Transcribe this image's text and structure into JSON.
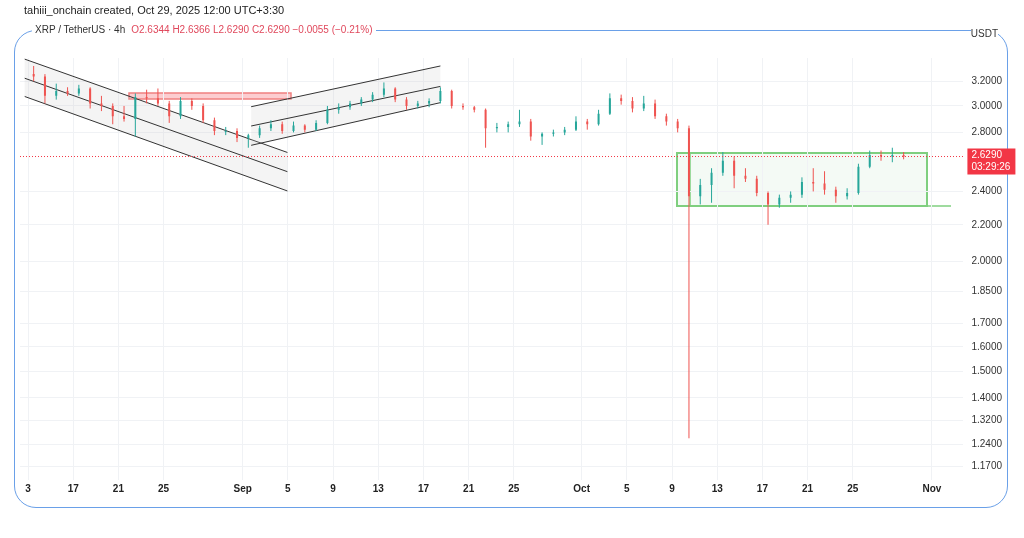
{
  "chart_data": {
    "type": "candlestick",
    "title": "XRP / TetherUS · 4h",
    "subtitle": "O2.6344 H2.6366 L2.6290 C2.6290 −0.0055 (−0.21%)",
    "ylabel": "USDT",
    "annotations": [
      "tahiii_onchain created, Oct 29, 2025 12:00 UTC+3:30",
      "03:29:26"
    ],
    "x": [
      "2025-08-13T12:00",
      "2025-08-14T12:00",
      "2025-08-15T12:00",
      "2025-08-16T12:00",
      "2025-08-17T12:00",
      "2025-08-18T12:00",
      "2025-08-19T12:00",
      "2025-08-20T12:00",
      "2025-08-21T12:00",
      "2025-08-22T12:00",
      "2025-08-23T12:00",
      "2025-08-24T12:00",
      "2025-08-25T12:00",
      "2025-08-26T12:00",
      "2025-08-27T12:00",
      "2025-08-28T12:00",
      "2025-08-29T12:00",
      "2025-08-30T12:00",
      "2025-08-31T12:00",
      "2025-09-01T12:00",
      "2025-09-02T12:00",
      "2025-09-03T12:00",
      "2025-09-04T12:00",
      "2025-09-05T12:00",
      "2025-09-06T12:00",
      "2025-09-07T12:00",
      "2025-09-08T12:00",
      "2025-09-09T12:00",
      "2025-09-10T12:00",
      "2025-09-11T12:00",
      "2025-09-12T12:00",
      "2025-09-13T12:00",
      "2025-09-14T12:00",
      "2025-09-15T12:00",
      "2025-09-16T12:00",
      "2025-09-17T12:00",
      "2025-09-18T12:00",
      "2025-09-19T12:00",
      "2025-09-20T12:00",
      "2025-09-21T12:00",
      "2025-09-22T12:00",
      "2025-09-23T12:00",
      "2025-09-24T12:00",
      "2025-09-25T12:00",
      "2025-09-26T12:00",
      "2025-09-27T12:00",
      "2025-09-28T12:00",
      "2025-09-29T12:00",
      "2025-09-30T12:00",
      "2025-10-01T12:00",
      "2025-10-02T12:00",
      "2025-10-03T12:00",
      "2025-10-04T12:00",
      "2025-10-05T12:00",
      "2025-10-06T12:00",
      "2025-10-07T12:00",
      "2025-10-08T12:00",
      "2025-10-09T12:00",
      "2025-10-10T12:00",
      "2025-10-11T12:00",
      "2025-10-12T12:00",
      "2025-10-13T12:00",
      "2025-10-14T12:00",
      "2025-10-15T12:00",
      "2025-10-16T12:00",
      "2025-10-17T12:00",
      "2025-10-18T12:00",
      "2025-10-19T12:00",
      "2025-10-20T12:00",
      "2025-10-21T12:00",
      "2025-10-22T12:00",
      "2025-10-23T12:00",
      "2025-10-24T12:00",
      "2025-10-25T12:00",
      "2025-10-26T12:00",
      "2025-10-27T12:00",
      "2025-10-28T12:00",
      "2025-10-29T12:00"
    ],
    "ohlc": [
      [
        3.26,
        3.33,
        3.2,
        3.24
      ],
      [
        3.24,
        3.26,
        3.02,
        3.08
      ],
      [
        3.08,
        3.18,
        3.05,
        3.12
      ],
      [
        3.12,
        3.15,
        3.08,
        3.1
      ],
      [
        3.1,
        3.17,
        3.08,
        3.14
      ],
      [
        3.14,
        3.15,
        2.98,
        3.02
      ],
      [
        3.02,
        3.08,
        2.96,
        3.0
      ],
      [
        3.0,
        3.02,
        2.86,
        2.92
      ],
      [
        2.92,
        3.0,
        2.88,
        2.9
      ],
      [
        2.9,
        3.1,
        2.77,
        3.07
      ],
      [
        3.07,
        3.13,
        3.02,
        3.06
      ],
      [
        3.06,
        3.14,
        3.0,
        3.02
      ],
      [
        3.02,
        3.04,
        2.87,
        2.92
      ],
      [
        2.92,
        3.07,
        2.9,
        3.04
      ],
      [
        3.04,
        3.06,
        2.97,
        3.0
      ],
      [
        3.0,
        3.02,
        2.87,
        2.89
      ],
      [
        2.89,
        2.91,
        2.78,
        2.81
      ],
      [
        2.81,
        2.84,
        2.78,
        2.81
      ],
      [
        2.81,
        2.83,
        2.73,
        2.76
      ],
      [
        2.76,
        2.79,
        2.69,
        2.78
      ],
      [
        2.78,
        2.85,
        2.76,
        2.83
      ],
      [
        2.83,
        2.89,
        2.81,
        2.86
      ],
      [
        2.86,
        2.88,
        2.79,
        2.81
      ],
      [
        2.81,
        2.88,
        2.8,
        2.85
      ],
      [
        2.85,
        2.86,
        2.8,
        2.82
      ],
      [
        2.82,
        2.89,
        2.81,
        2.87
      ],
      [
        2.87,
        3.0,
        2.86,
        2.97
      ],
      [
        2.97,
        3.02,
        2.94,
        2.99
      ],
      [
        2.99,
        3.04,
        2.97,
        3.02
      ],
      [
        3.02,
        3.07,
        3.0,
        3.05
      ],
      [
        3.05,
        3.11,
        3.03,
        3.09
      ],
      [
        3.09,
        3.19,
        3.07,
        3.14
      ],
      [
        3.14,
        3.15,
        3.03,
        3.05
      ],
      [
        3.05,
        3.07,
        2.97,
        3.0
      ],
      [
        3.0,
        3.04,
        2.98,
        3.02
      ],
      [
        3.02,
        3.06,
        2.99,
        3.04
      ],
      [
        3.04,
        3.15,
        3.02,
        3.12
      ],
      [
        3.12,
        3.13,
        2.98,
        3.0
      ],
      [
        3.0,
        3.02,
        2.97,
        2.99
      ],
      [
        2.99,
        3.0,
        2.95,
        2.97
      ],
      [
        2.97,
        2.98,
        2.69,
        2.83
      ],
      [
        2.83,
        2.87,
        2.8,
        2.84
      ],
      [
        2.84,
        2.88,
        2.8,
        2.86
      ],
      [
        2.86,
        2.97,
        2.84,
        2.88
      ],
      [
        2.88,
        2.9,
        2.74,
        2.77
      ],
      [
        2.77,
        2.8,
        2.71,
        2.79
      ],
      [
        2.79,
        2.82,
        2.77,
        2.8
      ],
      [
        2.8,
        2.84,
        2.78,
        2.82
      ],
      [
        2.82,
        2.92,
        2.81,
        2.88
      ],
      [
        2.88,
        2.9,
        2.82,
        2.86
      ],
      [
        2.86,
        2.97,
        2.85,
        2.94
      ],
      [
        2.94,
        3.1,
        2.93,
        3.06
      ],
      [
        3.06,
        3.09,
        3.01,
        3.04
      ],
      [
        3.04,
        3.07,
        2.95,
        2.98
      ],
      [
        2.98,
        3.08,
        2.96,
        3.02
      ],
      [
        3.02,
        3.05,
        2.9,
        2.92
      ],
      [
        2.92,
        2.94,
        2.85,
        2.88
      ],
      [
        2.88,
        2.9,
        2.8,
        2.83
      ],
      [
        2.83,
        2.85,
        1.26,
        2.37
      ],
      [
        2.37,
        2.48,
        2.32,
        2.44
      ],
      [
        2.44,
        2.55,
        2.33,
        2.52
      ],
      [
        2.52,
        2.66,
        2.5,
        2.6
      ],
      [
        2.6,
        2.63,
        2.42,
        2.5
      ],
      [
        2.5,
        2.55,
        2.46,
        2.48
      ],
      [
        2.48,
        2.5,
        2.37,
        2.39
      ],
      [
        2.39,
        2.4,
        2.2,
        2.32
      ],
      [
        2.32,
        2.38,
        2.3,
        2.36
      ],
      [
        2.36,
        2.4,
        2.33,
        2.38
      ],
      [
        2.38,
        2.49,
        2.36,
        2.46
      ],
      [
        2.46,
        2.55,
        2.4,
        2.45
      ],
      [
        2.45,
        2.53,
        2.38,
        2.41
      ],
      [
        2.41,
        2.43,
        2.33,
        2.37
      ],
      [
        2.37,
        2.42,
        2.35,
        2.39
      ],
      [
        2.39,
        2.58,
        2.38,
        2.56
      ],
      [
        2.56,
        2.67,
        2.55,
        2.64
      ],
      [
        2.64,
        2.67,
        2.6,
        2.63
      ],
      [
        2.63,
        2.69,
        2.59,
        2.64
      ],
      [
        2.64,
        2.66,
        2.61,
        2.629
      ]
    ],
    "xlim": [
      "2025-08-12T07:00",
      "2025-11-03T19:00"
    ],
    "xticks": [
      {
        "value": "2025-08-13",
        "label": "3"
      },
      {
        "value": "2025-08-17",
        "label": "17"
      },
      {
        "value": "2025-08-21",
        "label": "21"
      },
      {
        "value": "2025-08-25",
        "label": "25"
      },
      {
        "value": "2025-09-01",
        "label": "Sep"
      },
      {
        "value": "2025-09-05",
        "label": "5"
      },
      {
        "value": "2025-09-09",
        "label": "9"
      },
      {
        "value": "2025-09-13",
        "label": "13"
      },
      {
        "value": "2025-09-17",
        "label": "17"
      },
      {
        "value": "2025-09-21",
        "label": "21"
      },
      {
        "value": "2025-09-25",
        "label": "25"
      },
      {
        "value": "2025-10-01",
        "label": "Oct"
      },
      {
        "value": "2025-10-05",
        "label": "5"
      },
      {
        "value": "2025-10-09",
        "label": "9"
      },
      {
        "value": "2025-10-13",
        "label": "13"
      },
      {
        "value": "2025-10-17",
        "label": "17"
      },
      {
        "value": "2025-10-21",
        "label": "21"
      },
      {
        "value": "2025-10-25",
        "label": "25"
      },
      {
        "value": "2025-11-01",
        "label": "Nov"
      }
    ],
    "ylim": [
      1.13,
      3.4
    ],
    "yticks": [
      {
        "value": 1.17,
        "label": "1.1700"
      },
      {
        "value": 1.24,
        "label": "1.2400"
      },
      {
        "value": 1.32,
        "label": "1.3200"
      },
      {
        "value": 1.4,
        "label": "1.4000"
      },
      {
        "value": 1.5,
        "label": "1.5000"
      },
      {
        "value": 1.6,
        "label": "1.6000"
      },
      {
        "value": 1.7,
        "label": "1.7000"
      },
      {
        "value": 1.85,
        "label": "1.8500"
      },
      {
        "value": 2.0,
        "label": "2.0000"
      },
      {
        "value": 2.2,
        "label": "2.2000"
      },
      {
        "value": 2.4,
        "label": "2.4000"
      },
      {
        "value": 2.8,
        "label": "2.8000"
      },
      {
        "value": 3.0,
        "label": "3.0000"
      },
      {
        "value": 3.2,
        "label": "3.2000"
      }
    ],
    "series": [
      {
        "type": "line",
        "color": "#333333",
        "x": [
          "2025-08-12T17:00",
          "2025-09-04T23:00"
        ],
        "values": [
          3.225,
          2.527
        ],
        "lower": [
          3.075,
          2.403
        ],
        "upper": [
          3.39,
          2.657
        ]
      },
      {
        "type": "line",
        "color": "#333333",
        "x": [
          "2025-08-12T17:00",
          "2025-09-04T23:00"
        ],
        "values": [
          3.075,
          2.403
        ]
      },
      {
        "type": "line",
        "color": "#333333",
        "x": [
          "2025-08-12T17:00",
          "2025-09-04T23:00"
        ],
        "values": [
          3.39,
          2.657
        ]
      },
      {
        "type": "line",
        "color": "#333333",
        "x": [
          "2025-09-01T18:00",
          "2025-09-18T12:00"
        ],
        "values": [
          2.847,
          3.157
        ],
        "lower": [
          2.707,
          3.026
        ],
        "upper": [
          2.994,
          3.33
        ]
      },
      {
        "type": "line",
        "color": "#333333",
        "x": [
          "2025-09-01T18:00",
          "2025-09-18T12:00"
        ],
        "values": [
          2.707,
          3.026
        ]
      },
      {
        "type": "line",
        "color": "#333333",
        "x": [
          "2025-09-01T18:00",
          "2025-09-18T12:00"
        ],
        "values": [
          2.994,
          3.33
        ]
      }
    ],
    "log": true,
    "grid": true,
    "ref_lines": [
      {
        "axis": "y",
        "value": 2.629,
        "label": "2.6290",
        "color": "#f23645",
        "line_style": "dotted"
      }
    ]
  }
}
